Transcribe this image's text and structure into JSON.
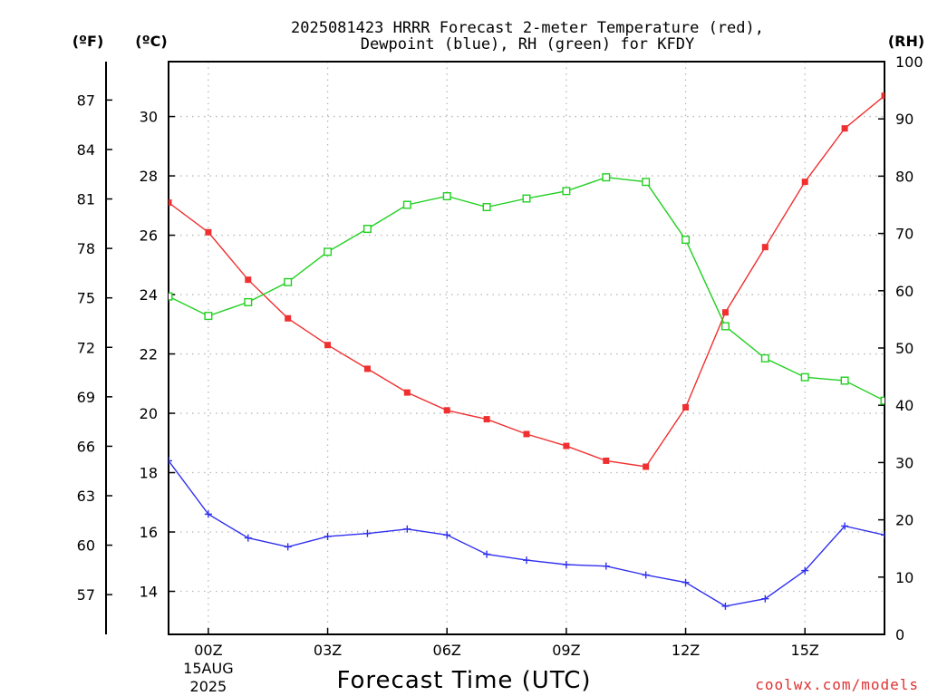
{
  "chart_data": {
    "type": "line",
    "title_lines": [
      "2025081423 HRRR Forecast 2-meter Temperature (red),",
      "Dewpoint (blue), RH (green) for KFDY"
    ],
    "xlabel": "Forecast Time (UTC)",
    "credit": "coolwx.com/models",
    "unit_labels": {
      "fahrenheit": "(ºF)",
      "celsius": "(ºC)",
      "rh": "(RH)"
    },
    "x_ticks": [
      {
        "hour": 1,
        "label": "00Z",
        "sublabels": [
          "15AUG",
          "2025"
        ]
      },
      {
        "hour": 4,
        "label": "03Z"
      },
      {
        "hour": 7,
        "label": "06Z"
      },
      {
        "hour": 10,
        "label": "09Z"
      },
      {
        "hour": 13,
        "label": "12Z"
      },
      {
        "hour": 16,
        "label": "15Z"
      }
    ],
    "x_hours_since_2025081423": [
      0,
      1,
      2,
      3,
      4,
      5,
      6,
      7,
      8,
      9,
      10,
      11,
      12,
      13,
      14,
      15,
      16,
      17,
      18
    ],
    "xlim": [
      0,
      18
    ],
    "celsius_axis": {
      "ticks": [
        14,
        16,
        18,
        20,
        22,
        24,
        26,
        28,
        30
      ],
      "range": [
        12.55,
        31.85
      ]
    },
    "fahrenheit_axis": {
      "ticks": [
        57,
        60,
        63,
        66,
        69,
        72,
        75,
        78,
        81,
        84,
        87
      ]
    },
    "rh_axis": {
      "ticks": [
        0,
        10,
        20,
        30,
        40,
        50,
        60,
        70,
        80,
        90,
        100
      ],
      "range": [
        0,
        100
      ]
    },
    "series": [
      {
        "name": "Temperature",
        "axis": "celsius",
        "color": "#f03030",
        "marker": "filled-square",
        "values": [
          27.1,
          26.1,
          24.5,
          23.2,
          22.3,
          21.5,
          20.7,
          20.1,
          19.8,
          19.3,
          18.9,
          18.4,
          18.2,
          20.2,
          23.4,
          25.6,
          27.8,
          29.6,
          30.7
        ]
      },
      {
        "name": "Dewpoint",
        "axis": "celsius",
        "color": "#3030f0",
        "marker": "plus",
        "values": [
          18.4,
          16.6,
          15.8,
          15.5,
          15.85,
          15.95,
          16.1,
          15.9,
          15.25,
          15.05,
          14.9,
          14.85,
          14.55,
          14.3,
          13.5,
          13.75,
          14.7,
          16.2,
          15.9
        ]
      },
      {
        "name": "RH",
        "axis": "rh",
        "color": "#20d020",
        "marker": "open-square",
        "values": [
          59,
          55.6,
          58,
          61.5,
          66.8,
          70.8,
          75,
          76.5,
          74.6,
          76.1,
          77.4,
          79.8,
          79,
          68.9,
          53.8,
          48.2,
          44.9,
          44.3,
          40.8
        ]
      }
    ],
    "grid": true,
    "legend": "none"
  }
}
